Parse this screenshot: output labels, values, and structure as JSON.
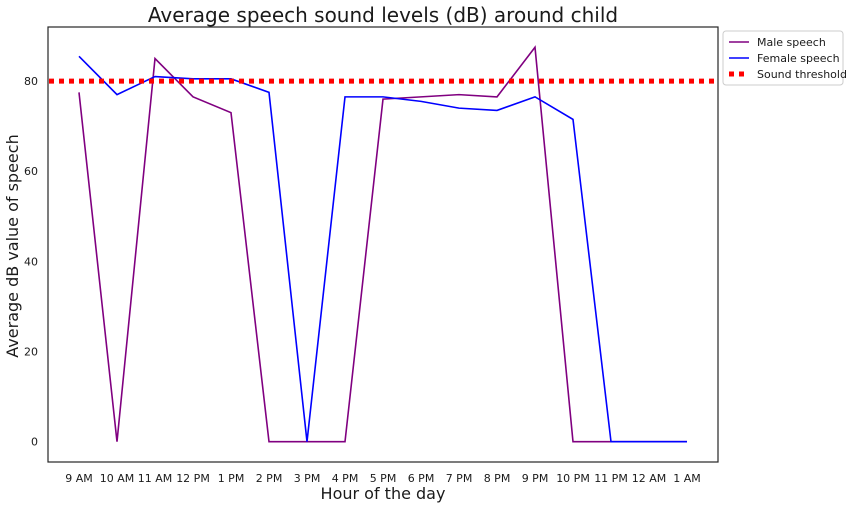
{
  "chart_data": {
    "type": "line",
    "title": "Average speech sound levels (dB) around child",
    "xlabel": "Hour of the day",
    "ylabel": "Average dB value of speech",
    "categories": [
      "9 AM",
      "10 AM",
      "11 AM",
      "12 PM",
      "1 PM",
      "2 PM",
      "3 PM",
      "4 PM",
      "5 PM",
      "6 PM",
      "7 PM",
      "8 PM",
      "9 PM",
      "10 PM",
      "11 PM",
      "12 AM",
      "1 AM"
    ],
    "ylim": [
      -4.5,
      92
    ],
    "yticks": [
      0,
      20,
      40,
      60,
      80
    ],
    "grid": false,
    "legend_position": "outside-top-right",
    "series": [
      {
        "name": "Male speech",
        "color": "#800080",
        "style": "solid",
        "values": [
          77.5,
          0,
          85,
          76.5,
          73,
          0,
          0,
          0,
          76,
          76.5,
          77,
          76.5,
          87.5,
          0,
          0,
          0,
          0
        ]
      },
      {
        "name": "Female speech",
        "color": "#0000ff",
        "style": "solid",
        "values": [
          85.5,
          77,
          81,
          80.5,
          80.5,
          77.5,
          0,
          76.5,
          76.5,
          75.5,
          74,
          73.5,
          76.5,
          71.5,
          0,
          0,
          0
        ]
      }
    ],
    "threshold": {
      "name": "Sound threshold",
      "value": 80,
      "color": "#ff0000",
      "style": "dotted"
    }
  }
}
